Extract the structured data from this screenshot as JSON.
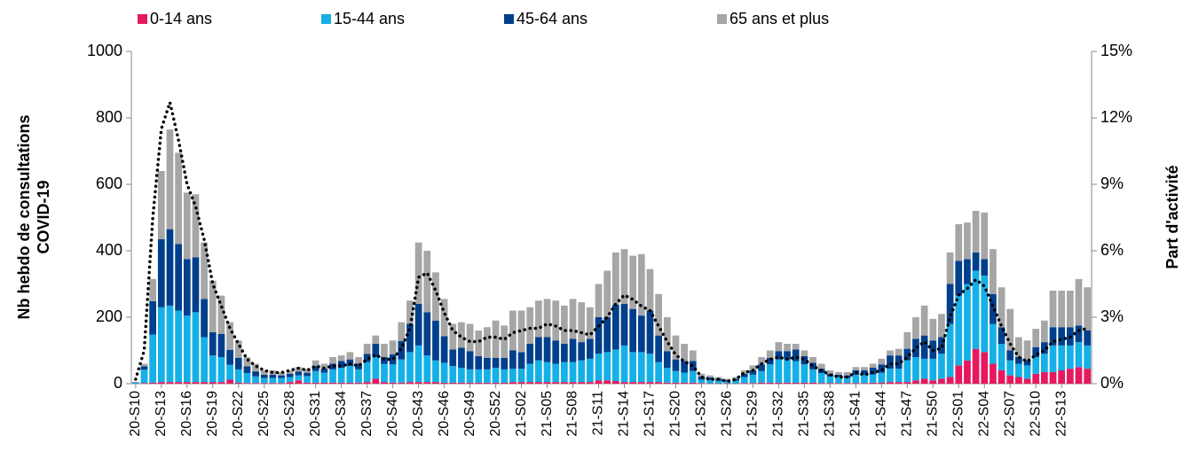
{
  "chart_data": {
    "type": "stacked_bar",
    "categories": [
      "20-S10",
      null,
      null,
      "20-S13",
      null,
      null,
      "20-S16",
      null,
      null,
      "20-S19",
      null,
      null,
      "20-S22",
      null,
      null,
      "20-S25",
      null,
      null,
      "20-S28",
      null,
      null,
      "20-S31",
      null,
      null,
      "20-S34",
      null,
      null,
      "20-S37",
      null,
      null,
      "20-S40",
      null,
      null,
      "20-S43",
      null,
      null,
      "20-S46",
      null,
      null,
      "20-S49",
      null,
      null,
      "20-S52",
      null,
      null,
      "21-S02",
      null,
      null,
      "21-S05",
      null,
      null,
      "21-S08",
      null,
      null,
      "21-S11",
      null,
      null,
      "21-S14",
      null,
      null,
      "21-S17",
      null,
      null,
      "21-S20",
      null,
      null,
      "21-S23",
      null,
      null,
      "21-S26",
      null,
      null,
      "21-S29",
      null,
      null,
      "21-S32",
      null,
      null,
      "21-S35",
      null,
      null,
      "21-S38",
      null,
      null,
      "21-S41",
      null,
      null,
      "21-S44",
      null,
      null,
      "21-S47",
      null,
      null,
      "21-S50",
      null,
      null,
      "22-S01",
      null,
      null,
      "22-S04",
      null,
      null,
      "22-S07",
      null,
      null,
      "22-S10",
      null,
      null,
      "22-S13",
      null,
      null,
      null
    ],
    "series": [
      {
        "name": "0-14 ans",
        "color": "#e6195f",
        "values": [
          0,
          2,
          3,
          5,
          5,
          5,
          5,
          5,
          5,
          5,
          5,
          12,
          3,
          2,
          2,
          2,
          2,
          2,
          5,
          10,
          3,
          3,
          3,
          3,
          3,
          3,
          3,
          5,
          15,
          5,
          3,
          3,
          5,
          5,
          5,
          5,
          3,
          3,
          3,
          3,
          3,
          3,
          3,
          3,
          5,
          5,
          5,
          5,
          5,
          5,
          5,
          5,
          5,
          5,
          10,
          10,
          8,
          5,
          5,
          5,
          5,
          5,
          3,
          3,
          3,
          3,
          2,
          1,
          1,
          1,
          1,
          2,
          2,
          3,
          3,
          3,
          3,
          3,
          3,
          3,
          2,
          2,
          2,
          2,
          2,
          2,
          3,
          3,
          5,
          5,
          5,
          10,
          15,
          10,
          15,
          20,
          55,
          70,
          105,
          95,
          60,
          40,
          25,
          20,
          15,
          30,
          35,
          35,
          40,
          45,
          50,
          45
        ]
      },
      {
        "name": "15-44 ans",
        "color": "#14b0e6",
        "values": [
          3,
          40,
          145,
          225,
          230,
          215,
          200,
          210,
          135,
          80,
          75,
          45,
          40,
          30,
          20,
          15,
          15,
          15,
          15,
          15,
          20,
          35,
          30,
          40,
          45,
          50,
          40,
          60,
          65,
          55,
          55,
          70,
          90,
          110,
          80,
          65,
          60,
          50,
          45,
          40,
          40,
          40,
          45,
          40,
          40,
          40,
          55,
          65,
          60,
          55,
          60,
          60,
          65,
          70,
          80,
          85,
          95,
          110,
          90,
          90,
          85,
          60,
          45,
          35,
          30,
          35,
          10,
          10,
          8,
          6,
          8,
          18,
          25,
          35,
          55,
          70,
          70,
          65,
          55,
          40,
          30,
          20,
          18,
          15,
          25,
          25,
          25,
          30,
          40,
          40,
          65,
          70,
          60,
          65,
          75,
          160,
          210,
          230,
          235,
          230,
          120,
          80,
          45,
          40,
          40,
          50,
          55,
          80,
          75,
          70,
          75,
          70
        ]
      },
      {
        "name": "45-64 ans",
        "color": "#003f8c",
        "values": [
          1,
          10,
          100,
          205,
          230,
          200,
          170,
          165,
          115,
          70,
          70,
          45,
          35,
          20,
          15,
          10,
          10,
          8,
          10,
          12,
          10,
          15,
          12,
          17,
          20,
          20,
          17,
          25,
          40,
          20,
          30,
          55,
          85,
          125,
          130,
          120,
          80,
          50,
          60,
          55,
          40,
          35,
          30,
          35,
          55,
          50,
          60,
          70,
          75,
          70,
          55,
          70,
          55,
          60,
          110,
          105,
          135,
          125,
          130,
          110,
          130,
          80,
          50,
          35,
          35,
          30,
          10,
          8,
          6,
          4,
          6,
          10,
          13,
          20,
          20,
          25,
          25,
          35,
          25,
          20,
          13,
          8,
          7,
          8,
          13,
          13,
          20,
          25,
          40,
          40,
          35,
          55,
          70,
          55,
          50,
          120,
          105,
          75,
          55,
          50,
          90,
          50,
          30,
          20,
          15,
          30,
          35,
          55,
          55,
          55,
          50,
          45
        ]
      },
      {
        "name": "65 ans et plus",
        "color": "#a6a6a6",
        "values": [
          1,
          8,
          67,
          205,
          300,
          275,
          200,
          190,
          170,
          155,
          115,
          83,
          52,
          28,
          23,
          13,
          13,
          10,
          10,
          13,
          12,
          17,
          15,
          20,
          17,
          22,
          20,
          30,
          25,
          40,
          42,
          57,
          70,
          185,
          185,
          145,
          112,
          77,
          77,
          82,
          77,
          92,
          112,
          97,
          120,
          125,
          110,
          110,
          115,
          120,
          115,
          120,
          120,
          95,
          100,
          140,
          157,
          165,
          160,
          185,
          125,
          125,
          102,
          72,
          52,
          32,
          8,
          6,
          5,
          4,
          5,
          10,
          15,
          22,
          22,
          27,
          22,
          17,
          17,
          17,
          15,
          10,
          8,
          10,
          10,
          10,
          12,
          17,
          15,
          20,
          50,
          65,
          90,
          65,
          70,
          95,
          110,
          110,
          125,
          140,
          135,
          120,
          125,
          60,
          60,
          55,
          65,
          110,
          110,
          110,
          140,
          130
        ]
      }
    ],
    "line": {
      "color": "#000000",
      "axis": "y2",
      "values": [
        0.2,
        1.5,
        7.5,
        11.5,
        12.7,
        11,
        9,
        8,
        6.5,
        4.5,
        3.5,
        2.5,
        1.8,
        1.1,
        0.8,
        0.6,
        0.5,
        0.5,
        0.6,
        0.7,
        0.6,
        0.8,
        0.7,
        0.8,
        0.8,
        0.9,
        0.8,
        1.1,
        1.3,
        1.1,
        1.1,
        1.6,
        2.5,
        4.8,
        5,
        4.2,
        3.2,
        2.4,
        2.1,
        1.9,
        1.9,
        2.1,
        2.1,
        2,
        2.3,
        2.4,
        2.5,
        2.5,
        2.7,
        2.6,
        2.4,
        2.4,
        2.3,
        2.2,
        2.6,
        3.0,
        3.6,
        4.0,
        3.8,
        3.5,
        3.3,
        2.6,
        1.9,
        1.3,
        1.0,
        0.8,
        0.3,
        0.2,
        0.2,
        0.1,
        0.2,
        0.5,
        0.6,
        0.9,
        1.1,
        1.2,
        1.1,
        1.2,
        1.1,
        0.8,
        0.6,
        0.4,
        0.3,
        0.3,
        0.5,
        0.4,
        0.5,
        0.6,
        0.9,
        0.9,
        1.2,
        1.6,
        1.9,
        1.5,
        1.6,
        3.0,
        4.0,
        4.3,
        4.7,
        4.4,
        3.5,
        2.6,
        1.8,
        1.2,
        1.0,
        1.3,
        1.5,
        1.9,
        2.0,
        2.1,
        2.4,
        2.5
      ]
    },
    "ylabel": [
      "Nb hebdo de consultations",
      "COVID-19"
    ],
    "y2label": "Part d'activité",
    "ylim": [
      0,
      1000
    ],
    "yticks": [
      0,
      200,
      400,
      600,
      800,
      1000
    ],
    "y2lim": [
      0,
      15
    ],
    "y2ticks": [
      {
        "value": 0,
        "label": "0%"
      },
      {
        "value": 3,
        "label": "3%"
      },
      {
        "value": 6,
        "label": "6%"
      },
      {
        "value": 9,
        "label": "9%"
      },
      {
        "value": 12,
        "label": "12%"
      },
      {
        "value": 15,
        "label": "15%"
      }
    ],
    "legend": "top"
  }
}
